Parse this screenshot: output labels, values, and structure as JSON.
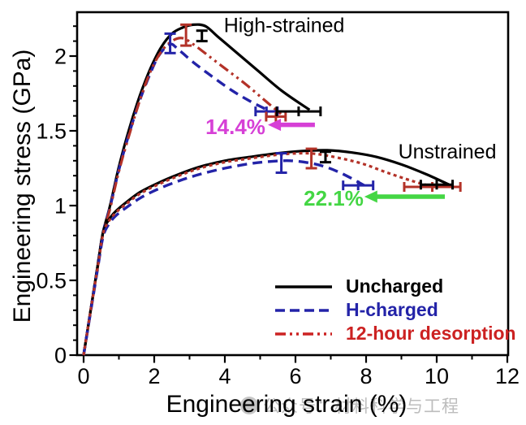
{
  "watermark": {
    "text": "公众号：材料科学与工程"
  },
  "chart_data": {
    "type": "line",
    "title": "",
    "xlabel": "Engineering strain (%)",
    "ylabel": "Engineering stress (GPa)",
    "xlim": [
      -0.2,
      12.05
    ],
    "ylim": [
      0,
      2.29
    ],
    "grid": false,
    "legend_position": "lower right inside",
    "x_major_ticks": [
      0,
      2,
      4,
      6,
      8,
      10,
      12
    ],
    "x_minor_ticks": [
      1,
      3,
      5,
      7,
      9,
      11
    ],
    "y_major_ticks": [
      0,
      0.5,
      1,
      1.5,
      2
    ],
    "y_major_tick_labels": [
      "0",
      "0.5",
      "1",
      "1.5",
      "2"
    ],
    "y_minor_step": 0.1,
    "colors": {
      "uncharged": "#000000",
      "h_charged": "#2323a8",
      "desorption": "#b33228",
      "desorption_legend_text": "#cc2222",
      "reduction_high": "#d640d6",
      "reduction_unstrained": "#44d644"
    },
    "legend": [
      {
        "label": "Uncharged",
        "color": "#000000",
        "line": "solid"
      },
      {
        "label": "H-charged",
        "color": "#2323a8",
        "line": "dashed"
      },
      {
        "label": "12-hour desorption",
        "color": "#cc2222",
        "line": "dash-dot-dot"
      }
    ],
    "series": [
      {
        "id": "hs-uncharged",
        "name": "Uncharged (high-strained)",
        "group": "High-strained",
        "points": [
          [
            0,
            0
          ],
          [
            0.2,
            0.3
          ],
          [
            0.4,
            0.6
          ],
          [
            0.55,
            0.82
          ],
          [
            0.75,
            1.0
          ],
          [
            1.0,
            1.26
          ],
          [
            1.3,
            1.52
          ],
          [
            1.6,
            1.74
          ],
          [
            1.9,
            1.92
          ],
          [
            2.2,
            2.06
          ],
          [
            2.5,
            2.15
          ],
          [
            2.8,
            2.19
          ],
          [
            3.1,
            2.21
          ],
          [
            3.45,
            2.2
          ],
          [
            3.8,
            2.13
          ],
          [
            4.3,
            2.03
          ],
          [
            4.9,
            1.91
          ],
          [
            5.6,
            1.77
          ],
          [
            6.4,
            1.64
          ]
        ]
      },
      {
        "id": "hs-h-charged",
        "name": "H-charged (high-strained)",
        "group": "High-strained",
        "points": [
          [
            0,
            0
          ],
          [
            0.2,
            0.3
          ],
          [
            0.4,
            0.6
          ],
          [
            0.55,
            0.82
          ],
          [
            0.75,
            0.99
          ],
          [
            1.0,
            1.24
          ],
          [
            1.3,
            1.49
          ],
          [
            1.6,
            1.71
          ],
          [
            1.9,
            1.89
          ],
          [
            2.15,
            2.01
          ],
          [
            2.45,
            2.08
          ],
          [
            2.7,
            2.04
          ],
          [
            3.1,
            1.96
          ],
          [
            3.6,
            1.87
          ],
          [
            4.2,
            1.77
          ],
          [
            4.7,
            1.7
          ],
          [
            5.2,
            1.64
          ]
        ]
      },
      {
        "id": "hs-desorption",
        "name": "12-hour desorption (high-strained)",
        "group": "High-strained",
        "points": [
          [
            0,
            0
          ],
          [
            0.2,
            0.3
          ],
          [
            0.4,
            0.59
          ],
          [
            0.55,
            0.81
          ],
          [
            0.75,
            0.98
          ],
          [
            1.0,
            1.23
          ],
          [
            1.3,
            1.48
          ],
          [
            1.6,
            1.71
          ],
          [
            1.9,
            1.9
          ],
          [
            2.2,
            2.03
          ],
          [
            2.5,
            2.1
          ],
          [
            2.8,
            2.12
          ],
          [
            3.1,
            2.08
          ],
          [
            3.6,
            1.99
          ],
          [
            4.1,
            1.9
          ],
          [
            4.6,
            1.81
          ],
          [
            5.1,
            1.71
          ],
          [
            5.6,
            1.61
          ]
        ]
      },
      {
        "id": "un-uncharged",
        "name": "Uncharged (unstrained)",
        "group": "Unstrained",
        "points": [
          [
            0,
            0
          ],
          [
            0.2,
            0.3
          ],
          [
            0.4,
            0.6
          ],
          [
            0.55,
            0.82
          ],
          [
            0.7,
            0.9
          ],
          [
            0.9,
            0.96
          ],
          [
            1.2,
            1.02
          ],
          [
            1.6,
            1.09
          ],
          [
            2.1,
            1.15
          ],
          [
            2.7,
            1.21
          ],
          [
            3.3,
            1.26
          ],
          [
            4.0,
            1.3
          ],
          [
            4.7,
            1.325
          ],
          [
            5.5,
            1.35
          ],
          [
            6.2,
            1.365
          ],
          [
            6.9,
            1.37
          ],
          [
            7.6,
            1.355
          ],
          [
            8.3,
            1.325
          ],
          [
            9.0,
            1.275
          ],
          [
            9.7,
            1.21
          ],
          [
            10.35,
            1.14
          ]
        ]
      },
      {
        "id": "un-h-charged",
        "name": "H-charged (unstrained)",
        "group": "Unstrained",
        "points": [
          [
            0,
            0
          ],
          [
            0.2,
            0.29
          ],
          [
            0.4,
            0.58
          ],
          [
            0.55,
            0.79
          ],
          [
            0.7,
            0.87
          ],
          [
            0.9,
            0.93
          ],
          [
            1.2,
            0.985
          ],
          [
            1.6,
            1.05
          ],
          [
            2.1,
            1.11
          ],
          [
            2.7,
            1.165
          ],
          [
            3.3,
            1.21
          ],
          [
            4.0,
            1.25
          ],
          [
            4.7,
            1.28
          ],
          [
            5.3,
            1.295
          ],
          [
            5.85,
            1.3
          ],
          [
            6.4,
            1.285
          ],
          [
            6.9,
            1.255
          ],
          [
            7.4,
            1.205
          ],
          [
            7.95,
            1.135
          ]
        ]
      },
      {
        "id": "un-desorption",
        "name": "12-hour desorption (unstrained)",
        "group": "Unstrained",
        "points": [
          [
            0,
            0
          ],
          [
            0.2,
            0.3
          ],
          [
            0.4,
            0.59
          ],
          [
            0.55,
            0.81
          ],
          [
            0.7,
            0.89
          ],
          [
            0.9,
            0.95
          ],
          [
            1.2,
            1.01
          ],
          [
            1.6,
            1.08
          ],
          [
            2.1,
            1.14
          ],
          [
            2.7,
            1.2
          ],
          [
            3.3,
            1.25
          ],
          [
            4.0,
            1.29
          ],
          [
            4.7,
            1.315
          ],
          [
            5.5,
            1.34
          ],
          [
            6.1,
            1.35
          ],
          [
            6.6,
            1.345
          ],
          [
            7.2,
            1.32
          ],
          [
            7.9,
            1.28
          ],
          [
            8.6,
            1.22
          ],
          [
            9.3,
            1.165
          ],
          [
            9.9,
            1.125
          ]
        ]
      }
    ],
    "error_bars": {
      "vertical": [
        {
          "series": "hs-h-charged",
          "x": 2.45,
          "low": 2.02,
          "high": 2.15
        },
        {
          "series": "hs-desorption",
          "x": 2.9,
          "low": 2.07,
          "high": 2.21
        },
        {
          "series": "hs-uncharged",
          "x": 3.35,
          "low": 2.1,
          "high": 2.17
        },
        {
          "series": "un-h-charged",
          "x": 5.6,
          "low": 1.22,
          "high": 1.35
        },
        {
          "series": "un-desorption",
          "x": 6.45,
          "low": 1.25,
          "high": 1.38
        },
        {
          "series": "un-uncharged",
          "x": 6.85,
          "low": 1.29,
          "high": 1.36
        }
      ],
      "horizontal": [
        {
          "series": "hs-h-charged",
          "y": 1.63,
          "low": 4.87,
          "high": 5.49
        },
        {
          "series": "hs-desorption",
          "y": 1.595,
          "low": 5.17,
          "high": 5.72
        },
        {
          "series": "hs-uncharged",
          "y": 1.63,
          "low": 5.47,
          "high": 6.71
        },
        {
          "series": "un-h-charged",
          "y": 1.135,
          "low": 7.35,
          "high": 8.2
        },
        {
          "series": "un-desorption",
          "y": 1.125,
          "low": 9.08,
          "high": 10.67
        },
        {
          "series": "un-uncharged",
          "y": 1.14,
          "low": 9.55,
          "high": 10.45
        }
      ]
    },
    "annotations": [
      {
        "id": "high-strained-label",
        "text": "High-strained",
        "x": 5.68,
        "y": 2.21,
        "color": "#000000",
        "size": 25,
        "bold": false
      },
      {
        "id": "unstrained-label",
        "text": "Unstrained",
        "x": 10.3,
        "y": 1.365,
        "color": "#000000",
        "size": 25,
        "bold": false
      },
      {
        "id": "reduction-high-label",
        "text": "14.4%",
        "x": 4.3,
        "y": 1.53,
        "color": "#d640d6",
        "size": 26,
        "bold": true
      },
      {
        "id": "reduction-unstrained-label",
        "text": "22.1%",
        "x": 7.08,
        "y": 1.05,
        "color": "#44d644",
        "size": 26,
        "bold": true
      }
    ],
    "arrows": [
      {
        "id": "reduction-arrow-high-strained",
        "from_x": 6.55,
        "to_x": 5.22,
        "y": 1.54,
        "color": "#d640d6"
      },
      {
        "id": "reduction-arrow-unstrained",
        "from_x": 10.23,
        "to_x": 7.95,
        "y": 1.06,
        "color": "#44d644"
      }
    ]
  }
}
